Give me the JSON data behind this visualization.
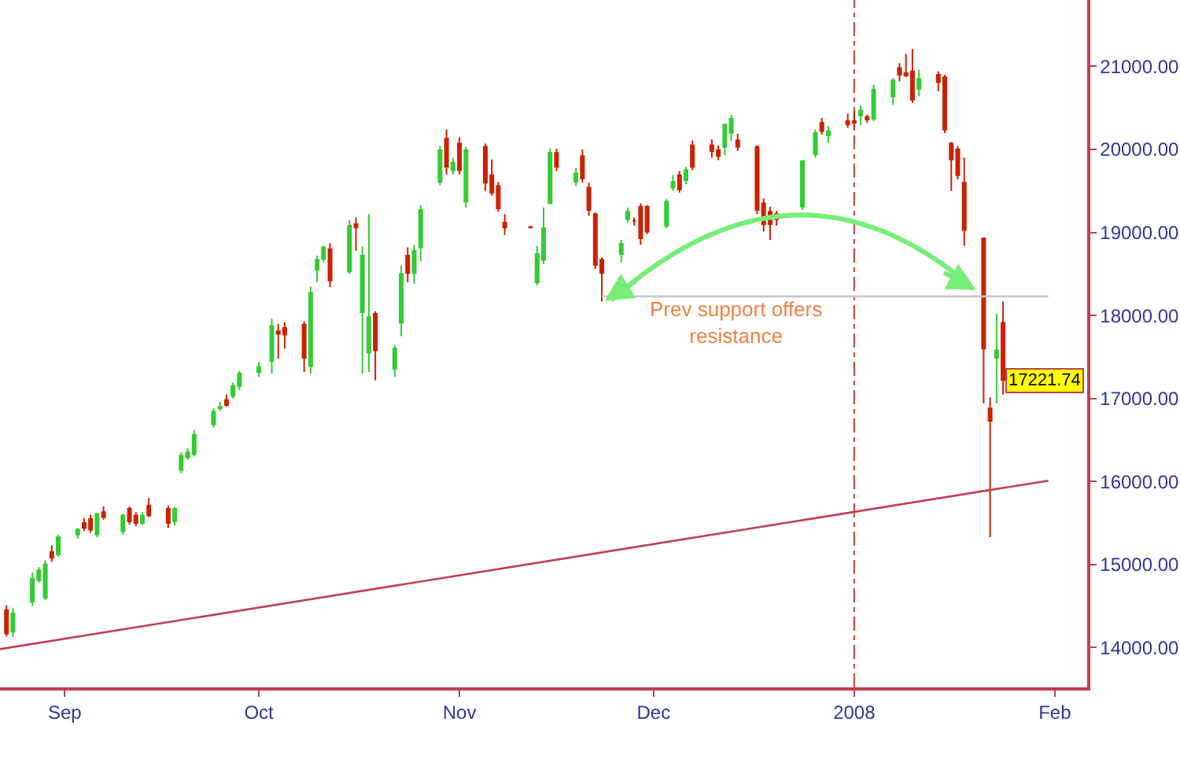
{
  "chart_data": {
    "type": "candlestick",
    "xlim": [
      "2007-08-22",
      "2008-02-06"
    ],
    "ylim": [
      13520,
      21800
    ],
    "xticks": [
      {
        "value": "2007-09-01",
        "label": "Sep"
      },
      {
        "value": "2007-10-01",
        "label": "Oct"
      },
      {
        "value": "2007-11-01",
        "label": "Nov"
      },
      {
        "value": "2007-12-01",
        "label": "Dec"
      },
      {
        "value": "2008-01-01",
        "label": "2008"
      },
      {
        "value": "2008-02-01",
        "label": "Feb"
      }
    ],
    "yticks": [
      {
        "value": 14000,
        "label": "14000.00"
      },
      {
        "value": 15000,
        "label": "15000.00"
      },
      {
        "value": 16000,
        "label": "16000.00"
      },
      {
        "value": 17000,
        "label": "17000.00"
      },
      {
        "value": 18000,
        "label": "18000.00"
      },
      {
        "value": 19000,
        "label": "19000.00"
      },
      {
        "value": 20000,
        "label": "20000.00"
      },
      {
        "value": 21000,
        "label": "21000.00"
      }
    ],
    "ref_lines": [
      {
        "axis": "x",
        "value": "2008-01-01",
        "color": "#c04040",
        "line_style": "dashed"
      }
    ],
    "annotations": [
      "Prev support offers resistance",
      "17221.74"
    ],
    "series": [
      {
        "x": [
          "2007-08-23",
          "2007-08-24",
          "2007-08-27",
          "2007-08-28",
          "2007-08-29",
          "2007-08-30",
          "2007-08-31",
          "2007-09-03",
          "2007-09-04",
          "2007-09-05",
          "2007-09-06",
          "2007-09-07",
          "2007-09-10",
          "2007-09-11",
          "2007-09-12",
          "2007-09-13",
          "2007-09-14",
          "2007-09-17",
          "2007-09-18",
          "2007-09-19",
          "2007-09-20",
          "2007-09-21",
          "2007-09-24",
          "2007-09-25",
          "2007-09-26",
          "2007-09-27",
          "2007-09-28",
          "2007-10-01",
          "2007-10-03",
          "2007-10-04",
          "2007-10-05",
          "2007-10-08",
          "2007-10-09",
          "2007-10-10",
          "2007-10-11",
          "2007-10-12",
          "2007-10-15",
          "2007-10-16",
          "2007-10-17",
          "2007-10-18",
          "2007-10-19",
          "2007-10-22",
          "2007-10-23",
          "2007-10-24",
          "2007-10-25",
          "2007-10-26",
          "2007-10-29",
          "2007-10-30",
          "2007-10-31",
          "2007-11-01",
          "2007-11-02",
          "2007-11-05",
          "2007-11-06",
          "2007-11-07",
          "2007-11-08",
          "2007-11-12",
          "2007-11-13",
          "2007-11-14",
          "2007-11-15",
          "2007-11-16",
          "2007-11-19",
          "2007-11-20",
          "2007-11-21",
          "2007-11-22",
          "2007-11-23",
          "2007-11-26",
          "2007-11-27",
          "2007-11-28",
          "2007-11-29",
          "2007-11-30",
          "2007-12-03",
          "2007-12-04",
          "2007-12-05",
          "2007-12-06",
          "2007-12-07",
          "2007-12-10",
          "2007-12-11",
          "2007-12-12",
          "2007-12-13",
          "2007-12-14",
          "2007-12-17",
          "2007-12-18",
          "2007-12-19",
          "2007-12-20",
          "2007-12-24",
          "2007-12-26",
          "2007-12-27",
          "2007-12-28",
          "2007-12-31",
          "2008-01-01",
          "2008-01-02",
          "2008-01-03",
          "2008-01-04",
          "2008-01-07",
          "2008-01-08",
          "2008-01-09",
          "2008-01-10",
          "2008-01-11",
          "2008-01-14",
          "2008-01-15",
          "2008-01-16",
          "2008-01-17",
          "2008-01-18",
          "2008-01-21",
          "2008-01-22",
          "2008-01-23",
          "2008-01-24"
        ],
        "ohlc": [
          [
            14450,
            14510,
            14130,
            14170
          ],
          [
            14190,
            14470,
            14130,
            14410
          ],
          [
            14550,
            14900,
            14500,
            14830
          ],
          [
            14810,
            14970,
            14780,
            14930
          ],
          [
            14600,
            15050,
            14570,
            15000
          ],
          [
            15150,
            15230,
            15030,
            15080
          ],
          [
            15120,
            15360,
            15090,
            15330
          ],
          [
            15360,
            15440,
            15310,
            15420
          ],
          [
            15500,
            15560,
            15400,
            15440
          ],
          [
            15550,
            15600,
            15380,
            15420
          ],
          [
            15360,
            15620,
            15330,
            15610
          ],
          [
            15630,
            15700,
            15540,
            15570
          ],
          [
            15400,
            15610,
            15360,
            15590
          ],
          [
            15670,
            15700,
            15480,
            15520
          ],
          [
            15590,
            15630,
            15460,
            15500
          ],
          [
            15500,
            15630,
            15480,
            15590
          ],
          [
            15710,
            15800,
            15570,
            15590
          ],
          [
            15670,
            15710,
            15440,
            15500
          ],
          [
            15520,
            15690,
            15470,
            15670
          ],
          [
            16140,
            16350,
            16100,
            16310
          ],
          [
            16290,
            16400,
            16260,
            16350
          ],
          [
            16330,
            16620,
            16300,
            16560
          ],
          [
            16690,
            16880,
            16650,
            16840
          ],
          [
            16880,
            16960,
            16850,
            16900
          ],
          [
            16980,
            17050,
            16900,
            16920
          ],
          [
            17030,
            17190,
            17000,
            17150
          ],
          [
            17150,
            17330,
            17100,
            17300
          ],
          [
            17320,
            17440,
            17260,
            17380
          ],
          [
            17450,
            17960,
            17300,
            17870
          ],
          [
            17810,
            17900,
            17480,
            17780
          ],
          [
            17850,
            17920,
            17600,
            17770
          ],
          [
            17890,
            17930,
            17320,
            17490
          ],
          [
            17390,
            18350,
            17300,
            18270
          ],
          [
            18550,
            18720,
            18400,
            18670
          ],
          [
            18680,
            18840,
            18640,
            18820
          ],
          [
            18800,
            18870,
            18340,
            18420
          ],
          [
            18530,
            19150,
            18500,
            19080
          ],
          [
            19100,
            19180,
            18780,
            19060
          ],
          [
            18040,
            18830,
            17300,
            18720
          ],
          [
            17550,
            19220,
            17320,
            17980
          ],
          [
            18020,
            18050,
            17220,
            17580
          ],
          [
            17360,
            17640,
            17260,
            17600
          ],
          [
            17910,
            18600,
            17750,
            18500
          ],
          [
            18720,
            18820,
            18400,
            18510
          ],
          [
            18510,
            18850,
            18380,
            18780
          ],
          [
            18820,
            19330,
            18650,
            19270
          ],
          [
            19610,
            20040,
            19570,
            19990
          ],
          [
            20130,
            20240,
            19700,
            19790
          ],
          [
            19750,
            19900,
            19700,
            19840
          ],
          [
            20070,
            20150,
            19700,
            19750
          ],
          [
            19370,
            20030,
            19300,
            19990
          ],
          [
            20030,
            20070,
            19500,
            19600
          ],
          [
            19690,
            19880,
            19440,
            19480
          ],
          [
            19560,
            19610,
            19250,
            19290
          ],
          [
            19120,
            19220,
            18970,
            19060
          ],
          [
            19065,
            19080,
            19050,
            19060
          ],
          [
            18400,
            18840,
            18360,
            18740
          ],
          [
            18670,
            19300,
            18620,
            19050
          ],
          [
            19350,
            20010,
            19350,
            19960
          ],
          [
            19960,
            20010,
            19740,
            19790
          ],
          [
            19610,
            19780,
            19560,
            19710
          ],
          [
            19920,
            20000,
            19600,
            19650
          ],
          [
            19540,
            19600,
            19200,
            19270
          ],
          [
            19220,
            19240,
            18560,
            18610
          ],
          [
            18670,
            18700,
            18170,
            18510
          ],
          [
            18740,
            18910,
            18640,
            18860
          ],
          [
            19160,
            19300,
            19120,
            19250
          ],
          [
            19140,
            19180,
            19080,
            19140
          ],
          [
            19310,
            19350,
            18850,
            18930
          ],
          [
            19310,
            19330,
            18980,
            19010
          ],
          [
            19080,
            19400,
            19050,
            19370
          ],
          [
            19540,
            19690,
            19500,
            19610
          ],
          [
            19690,
            19740,
            19480,
            19520
          ],
          [
            19630,
            19790,
            19580,
            19750
          ],
          [
            20050,
            20110,
            19750,
            19790
          ],
          [
            20050,
            20120,
            19900,
            19980
          ],
          [
            19990,
            20050,
            19870,
            19920
          ],
          [
            20030,
            20310,
            19930,
            20300
          ],
          [
            20200,
            20420,
            20100,
            20370
          ],
          [
            20110,
            20190,
            19980,
            20030
          ],
          [
            20030,
            20050,
            19220,
            19270
          ],
          [
            19350,
            19410,
            19010,
            19100
          ],
          [
            19250,
            19310,
            18910,
            19100
          ],
          [
            19220,
            19260,
            19080,
            19160
          ],
          [
            19310,
            19870,
            19270,
            19860
          ],
          [
            19940,
            20240,
            19900,
            20200
          ],
          [
            20320,
            20380,
            20180,
            20220
          ],
          [
            20170,
            20280,
            20080,
            20220
          ],
          [
            20340,
            20430,
            20260,
            20300
          ],
          [
            20340,
            20470,
            20250,
            20320
          ],
          [
            20410,
            20530,
            20290,
            20470
          ],
          [
            20390,
            20420,
            20320,
            20360
          ],
          [
            20370,
            20780,
            20340,
            20720
          ],
          [
            20640,
            20860,
            20540,
            20830
          ],
          [
            20980,
            21040,
            20820,
            20900
          ],
          [
            20920,
            21150,
            20870,
            20890
          ],
          [
            20940,
            21210,
            20560,
            20600
          ],
          [
            20730,
            20960,
            20640,
            20850
          ],
          [
            20900,
            20940,
            20700,
            20810
          ],
          [
            20870,
            20900,
            20200,
            20240
          ],
          [
            20070,
            20090,
            19500,
            19880
          ],
          [
            20000,
            20040,
            19640,
            19690
          ],
          [
            19600,
            19900,
            18840,
            19030
          ],
          [
            18930,
            18940,
            16940,
            17600
          ],
          [
            16880,
            17010,
            15330,
            16730
          ],
          [
            17490,
            18020,
            16940,
            17580
          ],
          [
            17910,
            18170,
            17050,
            17221.74
          ]
        ],
        "colors": [
          "#cc2200",
          "#33cc33",
          "#33cc33",
          "#33cc33",
          "#33cc33",
          "#cc2200",
          "#33cc33",
          "#33cc33",
          "#cc2200",
          "#cc2200",
          "#33cc33",
          "#cc2200",
          "#33cc33",
          "#cc2200",
          "#cc2200",
          "#33cc33",
          "#cc2200",
          "#cc2200",
          "#33cc33",
          "#33cc33",
          "#33cc33",
          "#33cc33",
          "#33cc33",
          "#33cc33",
          "#cc2200",
          "#33cc33",
          "#33cc33",
          "#33cc33",
          "#33cc33",
          "#cc2200",
          "#cc2200",
          "#cc2200",
          "#33cc33",
          "#33cc33",
          "#33cc33",
          "#cc2200",
          "#33cc33",
          "#cc2200",
          "#33cc33",
          "#33cc33",
          "#cc2200",
          "#33cc33",
          "#33cc33",
          "#cc2200",
          "#33cc33",
          "#33cc33",
          "#33cc33",
          "#cc2200",
          "#33cc33",
          "#cc2200",
          "#33cc33",
          "#cc2200",
          "#cc2200",
          "#cc2200",
          "#cc2200",
          "#cc2200",
          "#33cc33",
          "#33cc33",
          "#33cc33",
          "#cc2200",
          "#33cc33",
          "#cc2200",
          "#cc2200",
          "#cc2200",
          "#cc2200",
          "#33cc33",
          "#33cc33",
          "#cc2200",
          "#cc2200",
          "#cc2200",
          "#33cc33",
          "#33cc33",
          "#cc2200",
          "#33cc33",
          "#cc2200",
          "#cc2200",
          "#cc2200",
          "#33cc33",
          "#33cc33",
          "#cc2200",
          "#cc2200",
          "#cc2200",
          "#cc2200",
          "#cc2200",
          "#33cc33",
          "#33cc33",
          "#cc2200",
          "#33cc33",
          "#cc2200",
          "#cc2200",
          "#33cc33",
          "#cc2200",
          "#33cc33",
          "#33cc33",
          "#cc2200",
          "#cc2200",
          "#cc2200",
          "#33cc33",
          "#cc2200",
          "#cc2200",
          "#cc2200",
          "#cc2200",
          "#cc2200",
          "#cc2200",
          "#cc2200",
          "#33cc33",
          "#cc2200"
        ]
      },
      {
        "type": "line",
        "x": [
          "2007-08-22",
          "2008-01-31"
        ],
        "values": [
          13980,
          16010
        ],
        "color": "#c04050"
      },
      {
        "type": "line",
        "x": [
          "2007-11-23",
          "2008-01-31"
        ],
        "values": [
          18230,
          18230
        ],
        "color": "#c8c8c8"
      }
    ]
  }
}
